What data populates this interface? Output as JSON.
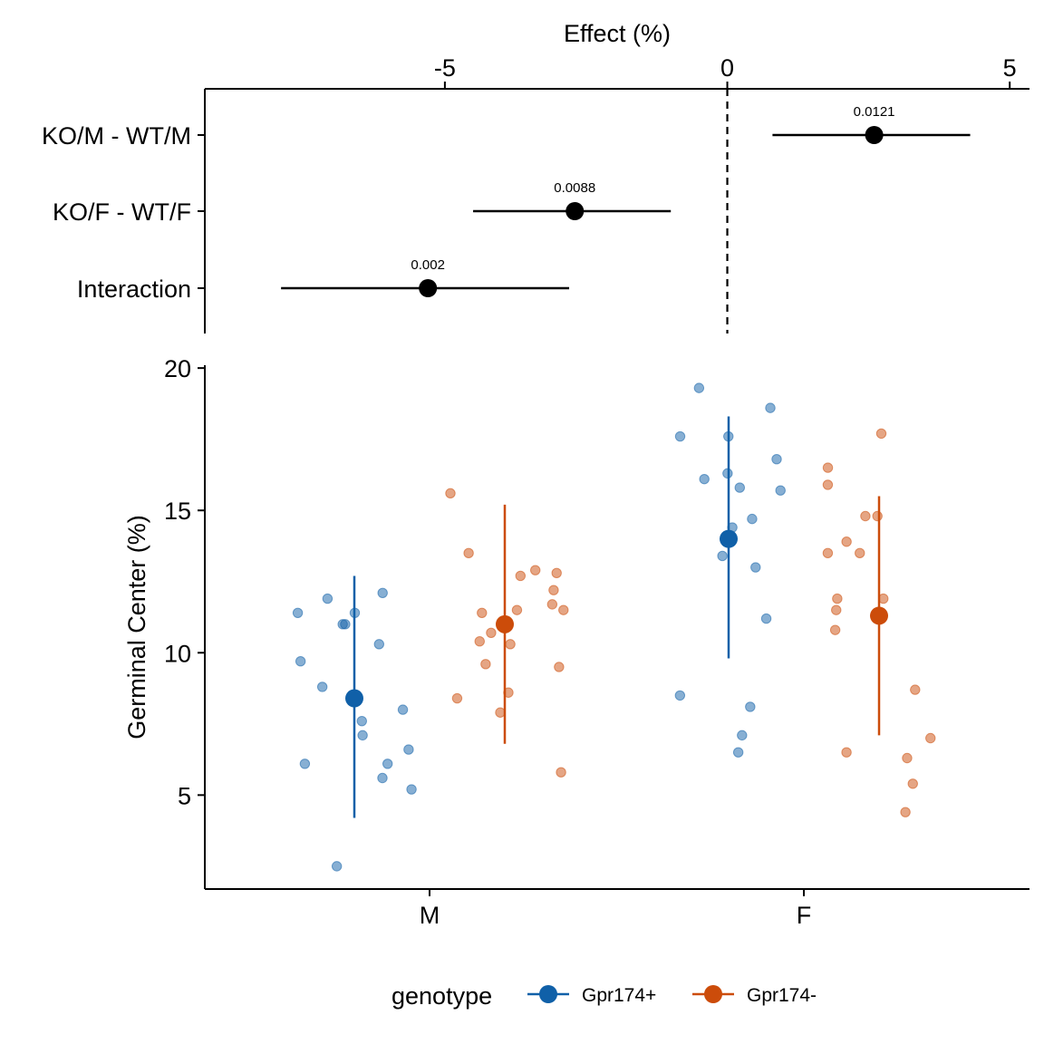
{
  "chart_data": [
    {
      "type": "forest",
      "xlabel": "Effect (%)",
      "x_ticks": [
        -5,
        0,
        5
      ],
      "xlim": [
        -9.25,
        5.35
      ],
      "reference_line": 0,
      "rows": [
        {
          "label": "KO/M - WT/M",
          "estimate": 2.6,
          "lower": 0.8,
          "upper": 4.3,
          "p_label": "0.0121"
        },
        {
          "label": "KO/F - WT/F",
          "estimate": -2.7,
          "lower": -4.5,
          "upper": -1.0,
          "p_label": "0.0088"
        },
        {
          "label": "Interaction",
          "estimate": -5.3,
          "lower": -7.9,
          "upper": -2.8,
          "p_label": "0.002"
        }
      ]
    },
    {
      "type": "scatter",
      "ylabel": "Germinal Center (%)",
      "ylim": [
        1.7,
        20.1
      ],
      "y_ticks": [
        5,
        10,
        15,
        20
      ],
      "categories": [
        "M",
        "F"
      ],
      "legend": {
        "title": "genotype",
        "position": "bottom"
      },
      "series": [
        {
          "name": "Gpr174+",
          "color": "#1060a8",
          "summary": [
            {
              "category": "M",
              "mean": 8.4,
              "lower": 4.2,
              "upper": 12.7
            },
            {
              "category": "F",
              "mean": 14.0,
              "lower": 9.8,
              "upper": 18.3
            }
          ],
          "points": {
            "M": [
              12.1,
              11.9,
              11.4,
              11.4,
              11.0,
              11.0,
              10.3,
              9.7,
              8.8,
              8.0,
              7.6,
              7.1,
              6.6,
              6.1,
              6.1,
              5.6,
              5.2,
              2.5
            ],
            "F": [
              19.3,
              18.6,
              17.6,
              17.6,
              16.8,
              16.3,
              16.1,
              15.8,
              15.7,
              14.7,
              14.4,
              13.4,
              13.0,
              11.2,
              8.5,
              8.1,
              7.1,
              6.5
            ]
          }
        },
        {
          "name": "Gpr174-",
          "color": "#cc4c0a",
          "summary": [
            {
              "category": "M",
              "mean": 11.0,
              "lower": 6.8,
              "upper": 15.2
            },
            {
              "category": "F",
              "mean": 11.3,
              "lower": 7.1,
              "upper": 15.5
            }
          ],
          "points": {
            "M": [
              15.6,
              13.5,
              12.9,
              12.8,
              12.7,
              12.2,
              11.7,
              11.5,
              11.5,
              11.4,
              10.7,
              10.4,
              10.3,
              9.6,
              9.5,
              8.6,
              8.4,
              7.9,
              5.8
            ],
            "F": [
              17.7,
              16.5,
              15.9,
              14.8,
              14.8,
              13.9,
              13.5,
              13.5,
              11.9,
              11.9,
              11.5,
              10.8,
              8.7,
              7.0,
              6.5,
              6.3,
              5.4,
              4.4
            ]
          }
        }
      ]
    }
  ]
}
